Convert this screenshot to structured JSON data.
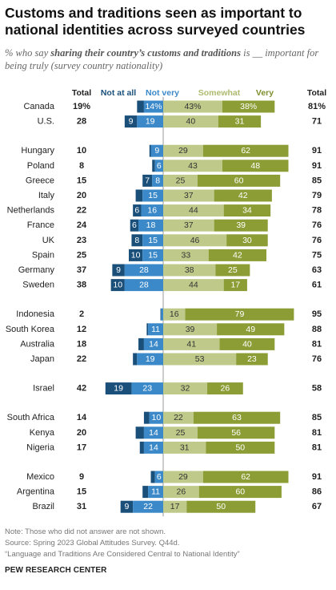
{
  "title": "Customs and traditions seen as important to national identities across surveyed countries",
  "subtitle": {
    "prefix": "% who say ",
    "emphasis": "sharing their country’s customs and traditions",
    "suffix": " is __ important for being truly (survey country nationality)"
  },
  "colors": {
    "not_at_all": "#1a4f7a",
    "not_very": "#3b89c8",
    "somewhat": "#bfca8a",
    "very": "#8c9d35",
    "somewhat_label": "#aebb6e",
    "very_label": "#808f2e",
    "text": "#222222",
    "divider": "#999999"
  },
  "chart_data": {
    "type": "bar",
    "orientation": "horizontal-diverging",
    "column_headers": {
      "total_left": "Total",
      "not_at_all": "Not at all",
      "not_very": "Not very",
      "somewhat": "Somewhat",
      "very": "Very",
      "total_right": "Total"
    },
    "rows": [
      {
        "country": "Canada",
        "total_neg": "19%",
        "not_at_all": 5,
        "not_very": "14%",
        "somewhat": "43%",
        "very": "38%",
        "total_pos": "81%"
      },
      {
        "country": "U.S.",
        "total_neg": "28",
        "not_at_all": "9",
        "not_very": "19",
        "somewhat": "40",
        "very": "31",
        "total_pos": "71"
      },
      {
        "country": "Hungary",
        "total_neg": "10",
        "not_at_all": 1,
        "not_very": "9",
        "somewhat": "29",
        "very": "62",
        "total_pos": "91"
      },
      {
        "country": "Poland",
        "total_neg": "8",
        "not_at_all": 2,
        "not_very": "6",
        "somewhat": "43",
        "very": "48",
        "total_pos": "91"
      },
      {
        "country": "Greece",
        "total_neg": "15",
        "not_at_all": "7",
        "not_very": "8",
        "somewhat": "25",
        "very": "60",
        "total_pos": "85"
      },
      {
        "country": "Italy",
        "total_neg": "20",
        "not_at_all": 5,
        "not_very": "15",
        "somewhat": "37",
        "very": "42",
        "total_pos": "79"
      },
      {
        "country": "Netherlands",
        "total_neg": "22",
        "not_at_all": "6",
        "not_very": "16",
        "somewhat": "44",
        "very": "34",
        "total_pos": "78"
      },
      {
        "country": "France",
        "total_neg": "24",
        "not_at_all": "6",
        "not_very": "18",
        "somewhat": "37",
        "very": "39",
        "total_pos": "76"
      },
      {
        "country": "UK",
        "total_neg": "23",
        "not_at_all": "8",
        "not_very": "15",
        "somewhat": "46",
        "very": "30",
        "total_pos": "76"
      },
      {
        "country": "Spain",
        "total_neg": "25",
        "not_at_all": "10",
        "not_very": "15",
        "somewhat": "33",
        "very": "42",
        "total_pos": "75"
      },
      {
        "country": "Germany",
        "total_neg": "37",
        "not_at_all": "9",
        "not_very": "28",
        "somewhat": "38",
        "very": "25",
        "total_pos": "63"
      },
      {
        "country": "Sweden",
        "total_neg": "38",
        "not_at_all": "10",
        "not_very": "28",
        "somewhat": "44",
        "very": "17",
        "total_pos": "61"
      },
      {
        "country": "Indonesia",
        "total_neg": "2",
        "not_at_all": 0.5,
        "not_very": 1.5,
        "somewhat": "16",
        "very": "79",
        "total_pos": "95"
      },
      {
        "country": "South Korea",
        "total_neg": "12",
        "not_at_all": 1,
        "not_very": "11",
        "somewhat": "39",
        "very": "49",
        "total_pos": "88"
      },
      {
        "country": "Australia",
        "total_neg": "18",
        "not_at_all": 4,
        "not_very": "14",
        "somewhat": "41",
        "very": "40",
        "total_pos": "81"
      },
      {
        "country": "Japan",
        "total_neg": "22",
        "not_at_all": 3,
        "not_very": "19",
        "somewhat": "53",
        "very": "23",
        "total_pos": "76"
      },
      {
        "country": "Israel",
        "total_neg": "42",
        "not_at_all": "19",
        "not_very": "23",
        "somewhat": "32",
        "very": "26",
        "total_pos": "58"
      },
      {
        "country": "South Africa",
        "total_neg": "14",
        "not_at_all": 4,
        "not_very": "10",
        "somewhat": "22",
        "very": "63",
        "total_pos": "85"
      },
      {
        "country": "Kenya",
        "total_neg": "20",
        "not_at_all": 6,
        "not_very": "14",
        "somewhat": "25",
        "very": "56",
        "total_pos": "81"
      },
      {
        "country": "Nigeria",
        "total_neg": "17",
        "not_at_all": 3,
        "not_very": "14",
        "somewhat": "31",
        "very": "50",
        "total_pos": "81"
      },
      {
        "country": "Mexico",
        "total_neg": "9",
        "not_at_all": 3,
        "not_very": "6",
        "somewhat": "29",
        "very": "62",
        "total_pos": "91"
      },
      {
        "country": "Argentina",
        "total_neg": "15",
        "not_at_all": 4,
        "not_very": "11",
        "somewhat": "26",
        "very": "60",
        "total_pos": "86"
      },
      {
        "country": "Brazil",
        "total_neg": "31",
        "not_at_all": "9",
        "not_very": "22",
        "somewhat": "17",
        "very": "50",
        "total_pos": "67"
      }
    ],
    "groups": [
      2,
      10,
      4,
      1,
      3,
      3
    ],
    "xlim": [
      -45,
      95
    ],
    "grid": false,
    "legend": "column-headers-top"
  },
  "notes": {
    "note": "Note: Those who did not answer are not shown.",
    "source": "Source: Spring 2023 Global Attitudes Survey. Q44d.",
    "report": "“Language and Traditions Are Considered Central to National Identity”"
  },
  "brand": "PEW RESEARCH CENTER"
}
